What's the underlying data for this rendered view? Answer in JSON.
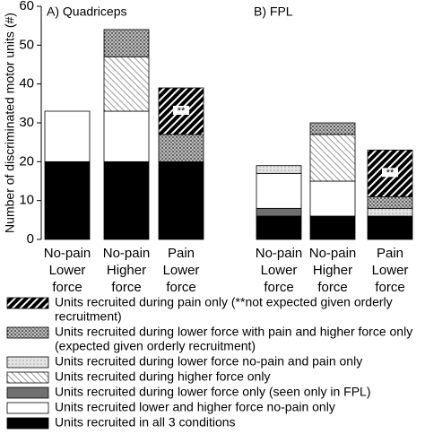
{
  "chart_data": [
    {
      "type": "stacked-bar",
      "title": "A) Quadriceps",
      "ylabel": "Number of discriminated motor units (#)",
      "categories": [
        [
          "No-pain",
          "Lower",
          "force"
        ],
        [
          "No-pain",
          "Higher",
          "force"
        ],
        [
          "Pain",
          "Lower",
          "force"
        ]
      ],
      "ylim": [
        0,
        60
      ],
      "yticks": [
        0,
        10,
        20,
        30,
        40,
        50,
        60
      ],
      "annotation": "**",
      "series": [
        {
          "name": [
            "Units recruited in all 3 conditions"
          ],
          "color": "#000000",
          "values": [
            20,
            20,
            20
          ]
        },
        {
          "name": [
            "Units recruited during lower force only (seen only in FPL)"
          ],
          "color": "#707070",
          "values": [
            0,
            0,
            0
          ]
        },
        {
          "name": [
            "Units recruited lower and higher force no-pain only"
          ],
          "color": "#ffffff",
          "values": [
            13,
            13,
            0
          ]
        },
        {
          "name": [
            "Units recruited during lower force no-pain and pain only"
          ],
          "color": "url(#pat-light)",
          "values": [
            0,
            0,
            0
          ]
        },
        {
          "name": [
            "Units recruited during higher force only"
          ],
          "color": "url(#pat-hatch)",
          "values": [
            0,
            14,
            0
          ]
        },
        {
          "name": [
            "Units recruited during lower force with pain and higher force only",
            "(expected given orderly recruitment)"
          ],
          "color": "url(#pat-dots)",
          "values": [
            0,
            7,
            7
          ]
        },
        {
          "name": [
            "Units recruited during pain only (**not expected given orderly",
            "recruitment)"
          ],
          "color": "url(#pat-pain)",
          "values": [
            0,
            0,
            12
          ]
        }
      ]
    },
    {
      "type": "stacked-bar",
      "title": "B) FPL",
      "categories": [
        [
          "No-pain",
          "Lower",
          "force"
        ],
        [
          "No-pain",
          "Higher",
          "force"
        ],
        [
          "Pain",
          "Lower",
          "force"
        ]
      ],
      "ylim": [
        0,
        60
      ],
      "annotation": "**",
      "series": [
        {
          "color": "#000000",
          "values": [
            6,
            6,
            6
          ]
        },
        {
          "color": "#707070",
          "values": [
            2,
            0,
            0
          ]
        },
        {
          "color": "#ffffff",
          "values": [
            9,
            9,
            0
          ]
        },
        {
          "color": "url(#pat-light)",
          "values": [
            2,
            0,
            2
          ]
        },
        {
          "color": "url(#pat-hatch)",
          "values": [
            0,
            12,
            0
          ]
        },
        {
          "color": "url(#pat-dots)",
          "values": [
            0,
            3,
            3
          ]
        },
        {
          "color": "url(#pat-pain)",
          "values": [
            0,
            0,
            12
          ]
        }
      ]
    }
  ]
}
